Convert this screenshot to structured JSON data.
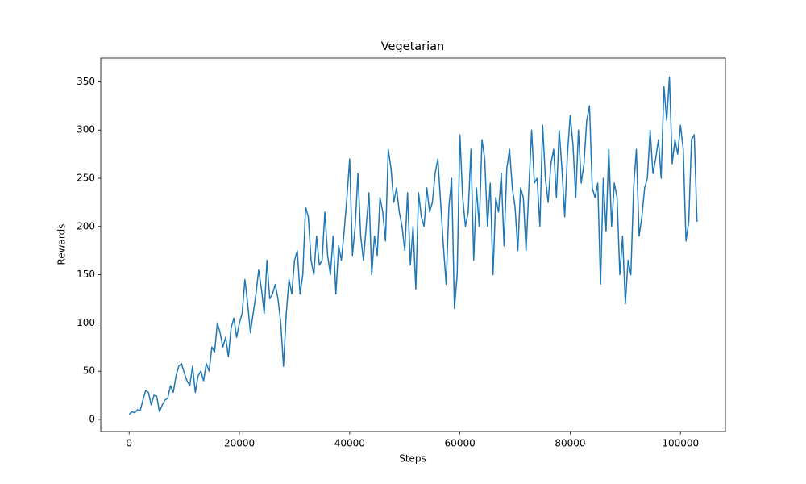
{
  "chart_data": {
    "type": "line",
    "title": "Vegetarian",
    "xlabel": "Steps",
    "ylabel": "Rewards",
    "x": [
      0,
      500,
      1000,
      1500,
      2000,
      2500,
      3000,
      3500,
      4000,
      4500,
      5000,
      5500,
      6000,
      6500,
      7000,
      7500,
      8000,
      8500,
      9000,
      9500,
      10000,
      10500,
      11000,
      11500,
      12000,
      12500,
      13000,
      13500,
      14000,
      14500,
      15000,
      15500,
      16000,
      16500,
      17000,
      17500,
      18000,
      18500,
      19000,
      19500,
      20000,
      20500,
      21000,
      21500,
      22000,
      22500,
      23000,
      23500,
      24000,
      24500,
      25000,
      25500,
      26000,
      26500,
      27000,
      27500,
      28000,
      28500,
      29000,
      29500,
      30000,
      30500,
      31000,
      31500,
      32000,
      32500,
      33000,
      33500,
      34000,
      34500,
      35000,
      35500,
      36000,
      36500,
      37000,
      37500,
      38000,
      38500,
      39000,
      39500,
      40000,
      40500,
      41000,
      41500,
      42000,
      42500,
      43000,
      43500,
      44000,
      44500,
      45000,
      45500,
      46000,
      46500,
      47000,
      47500,
      48000,
      48500,
      49000,
      49500,
      50000,
      50500,
      51000,
      51500,
      52000,
      52500,
      53000,
      53500,
      54000,
      54500,
      55000,
      55500,
      56000,
      56500,
      57000,
      57500,
      58000,
      58500,
      59000,
      59500,
      60000,
      60500,
      61000,
      61500,
      62000,
      62500,
      63000,
      63500,
      64000,
      64500,
      65000,
      65500,
      66000,
      66500,
      67000,
      67500,
      68000,
      68500,
      69000,
      69500,
      70000,
      70500,
      71000,
      71500,
      72000,
      72500,
      73000,
      73500,
      74000,
      74500,
      75000,
      75500,
      76000,
      76500,
      77000,
      77500,
      78000,
      78500,
      79000,
      79500,
      80000,
      80500,
      81000,
      81500,
      82000,
      82500,
      83000,
      83500,
      84000,
      84500,
      85000,
      85500,
      86000,
      86500,
      87000,
      87500,
      88000,
      88500,
      89000,
      89500,
      90000,
      90500,
      91000,
      91500,
      92000,
      92500,
      93000,
      93500,
      94000,
      94500,
      95000,
      95500,
      96000,
      96500,
      97000,
      97500,
      98000,
      98500,
      99000,
      99500,
      100000,
      100500,
      101000,
      101500,
      102000,
      102500,
      103000
    ],
    "series": [
      {
        "name": "Rewards",
        "color": "#1f77b4",
        "values": [
          5,
          8,
          7,
          10,
          9,
          20,
          30,
          28,
          15,
          25,
          24,
          8,
          15,
          20,
          22,
          35,
          28,
          45,
          55,
          58,
          48,
          40,
          35,
          55,
          28,
          45,
          50,
          40,
          58,
          50,
          75,
          70,
          100,
          90,
          75,
          85,
          65,
          95,
          105,
          85,
          100,
          110,
          145,
          120,
          90,
          110,
          130,
          155,
          135,
          110,
          165,
          125,
          130,
          140,
          125,
          100,
          55,
          110,
          145,
          130,
          165,
          175,
          130,
          150,
          220,
          210,
          165,
          150,
          190,
          160,
          165,
          215,
          170,
          150,
          190,
          130,
          180,
          165,
          195,
          230,
          270,
          170,
          200,
          255,
          190,
          165,
          200,
          235,
          150,
          190,
          170,
          230,
          215,
          185,
          280,
          260,
          225,
          240,
          215,
          200,
          175,
          235,
          160,
          200,
          135,
          235,
          210,
          200,
          240,
          215,
          225,
          255,
          270,
          225,
          180,
          140,
          220,
          250,
          115,
          150,
          295,
          230,
          200,
          215,
          280,
          165,
          240,
          200,
          290,
          270,
          200,
          245,
          150,
          230,
          215,
          255,
          180,
          260,
          280,
          240,
          220,
          175,
          240,
          230,
          175,
          240,
          300,
          245,
          250,
          200,
          305,
          250,
          225,
          265,
          280,
          230,
          300,
          260,
          210,
          275,
          315,
          285,
          230,
          300,
          245,
          265,
          310,
          325,
          240,
          230,
          245,
          140,
          250,
          195,
          280,
          200,
          245,
          230,
          150,
          190,
          120,
          165,
          150,
          240,
          280,
          190,
          210,
          240,
          250,
          300,
          255,
          270,
          290,
          250,
          345,
          310,
          355,
          265,
          290,
          275,
          305,
          280,
          185,
          205,
          290,
          295,
          205
        ]
      }
    ],
    "xlim": [
      -5150,
      108150
    ],
    "ylim": [
      -12.6,
      374.6
    ],
    "xticks": [
      0,
      20000,
      40000,
      60000,
      80000,
      100000
    ],
    "yticks": [
      0,
      50,
      100,
      150,
      200,
      250,
      300,
      350
    ]
  }
}
